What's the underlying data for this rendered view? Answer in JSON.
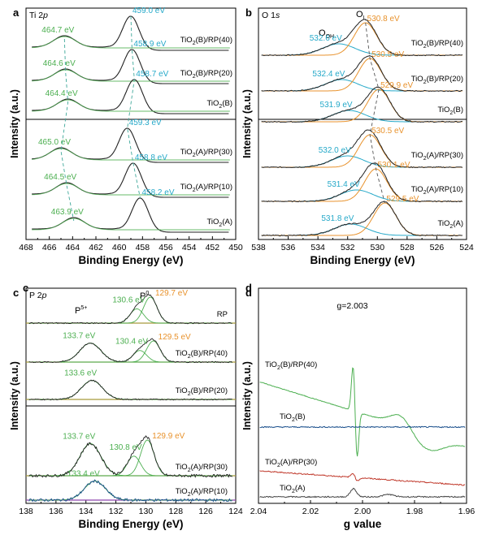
{
  "colors": {
    "green": "#4caf50",
    "cyan": "#26a9c9",
    "orange": "#e8922c",
    "black": "#222222",
    "olive": "#a89a3c",
    "blue": "#1a4f8c",
    "red": "#c0392b",
    "purple": "#8e44ad",
    "teal_line": "#3fa89a"
  },
  "chart_data": [
    {
      "panel": "a",
      "type": "line",
      "region": "Ti 2p",
      "xlabel": "Binding Energy (eV)",
      "ylabel": "Intensity (a.u.)",
      "xlim": [
        468,
        450
      ],
      "xticks": [
        "468",
        "466",
        "464",
        "462",
        "460",
        "458",
        "456",
        "454",
        "452",
        "450"
      ],
      "groups": [
        {
          "series": [
            {
              "name": "TiO2(B)/RP(40)",
              "label_sub": "2",
              "peaks": [
                {
                  "x": 464.7,
                  "label": "464.7 eV"
                },
                {
                  "x": 459.0,
                  "label": "459.0 eV"
                }
              ]
            },
            {
              "name": "TiO2(B)/RP(20)",
              "peaks": [
                {
                  "x": 464.6,
                  "label": "464.6 eV"
                },
                {
                  "x": 458.9,
                  "label": "458.9 eV"
                }
              ]
            },
            {
              "name": "TiO2(B)",
              "peaks": [
                {
                  "x": 464.4,
                  "label": "464.4 eV"
                },
                {
                  "x": 458.7,
                  "label": "458.7 eV"
                }
              ]
            }
          ]
        },
        {
          "series": [
            {
              "name": "TiO2(A)/RP(30)",
              "peaks": [
                {
                  "x": 465.0,
                  "label": "465.0 eV"
                },
                {
                  "x": 459.3,
                  "label": "459.3 eV"
                }
              ]
            },
            {
              "name": "TiO2(A)/RP(10)",
              "peaks": [
                {
                  "x": 464.5,
                  "label": "464.5 eV"
                },
                {
                  "x": 458.8,
                  "label": "458.8 eV"
                }
              ]
            },
            {
              "name": "TiO2(A)",
              "peaks": [
                {
                  "x": 463.9,
                  "label": "463.9 eV"
                },
                {
                  "x": 458.2,
                  "label": "458.2 eV"
                }
              ]
            }
          ]
        }
      ]
    },
    {
      "panel": "b",
      "type": "line",
      "region": "O 1s",
      "xlabel": "Binding Energy (eV)",
      "ylabel": "Intensity (a.u.)",
      "xlim": [
        538,
        524
      ],
      "xticks": [
        "538",
        "536",
        "534",
        "532",
        "530",
        "528",
        "526",
        "524"
      ],
      "annotations": [
        "O",
        "OH",
        "O",
        "L"
      ],
      "groups": [
        {
          "series": [
            {
              "name": "TiO2(B)/RP(40)",
              "peaks": [
                {
                  "x": 532.6,
                  "label": "532.6 eV"
                },
                {
                  "x": 530.8,
                  "label": "530.8 eV"
                }
              ]
            },
            {
              "name": "TiO2(B)/RP(20)",
              "peaks": [
                {
                  "x": 532.4,
                  "label": "532.4 eV"
                },
                {
                  "x": 530.5,
                  "label": "530.5 eV"
                }
              ]
            },
            {
              "name": "TiO2(B)",
              "peaks": [
                {
                  "x": 531.9,
                  "label": "531.9 eV"
                },
                {
                  "x": 529.9,
                  "label": "529.9 eV"
                }
              ]
            }
          ]
        },
        {
          "series": [
            {
              "name": "TiO2(A)/RP(30)",
              "peaks": [
                {
                  "x": 532.0,
                  "label": "532.0 eV"
                },
                {
                  "x": 530.5,
                  "label": "530.5 eV"
                }
              ]
            },
            {
              "name": "TiO2(A)/RP(10)",
              "peaks": [
                {
                  "x": 531.4,
                  "label": "531.4 eV"
                },
                {
                  "x": 530.1,
                  "label": "530.1 eV"
                }
              ]
            },
            {
              "name": "TiO2(A)",
              "peaks": [
                {
                  "x": 531.8,
                  "label": "531.8 eV"
                },
                {
                  "x": 529.5,
                  "label": "529.5 eV"
                }
              ]
            }
          ]
        }
      ]
    },
    {
      "panel": "c",
      "type": "line",
      "region": "P 2p",
      "xlabel": "Binding Energy (eV)",
      "ylabel": "Intensity (a.u.)",
      "xlim": [
        138,
        124
      ],
      "xticks": [
        "138",
        "136",
        "134",
        "132",
        "130",
        "128",
        "126",
        "124"
      ],
      "annotations": [
        "P",
        "5+",
        "P",
        "0"
      ],
      "groups": [
        {
          "series": [
            {
              "name": "RP",
              "peaks": [
                {
                  "x": 130.6,
                  "label": "130.6 eV"
                },
                {
                  "x": 129.7,
                  "label": "129.7 eV"
                }
              ]
            },
            {
              "name": "TiO2(B)/RP(40)",
              "peaks": [
                {
                  "x": 133.7,
                  "label": "133.7 eV"
                },
                {
                  "x": 130.4,
                  "label": "130.4 eV"
                },
                {
                  "x": 129.5,
                  "label": "129.5 eV"
                }
              ]
            },
            {
              "name": "TiO2(B)/RP(20)",
              "peaks": [
                {
                  "x": 133.6,
                  "label": "133.6 eV"
                }
              ]
            }
          ]
        },
        {
          "series": [
            {
              "name": "TiO2(A)/RP(30)",
              "peaks": [
                {
                  "x": 133.7,
                  "label": "133.7 eV"
                },
                {
                  "x": 130.8,
                  "label": "130.8 eV"
                },
                {
                  "x": 129.9,
                  "label": "129.9 eV"
                }
              ]
            },
            {
              "name": "TiO2(A)/RP(10)",
              "peaks": [
                {
                  "x": 133.4,
                  "label": "133.4 eV"
                }
              ]
            }
          ]
        }
      ]
    },
    {
      "panel": "d",
      "type": "line",
      "xlabel": "g value",
      "ylabel": "Intensity (a.u.)",
      "xlim": [
        2.04,
        1.96
      ],
      "xticks": [
        "2.04",
        "2.02",
        "2.00",
        "1.98",
        "1.96"
      ],
      "annotation": "g=2.003",
      "series": [
        {
          "name": "TiO2(B)/RP(40)"
        },
        {
          "name": "TiO2(B)"
        },
        {
          "name": "TiO2(A)/RP(30)"
        },
        {
          "name": "TiO2(A)"
        }
      ]
    }
  ]
}
